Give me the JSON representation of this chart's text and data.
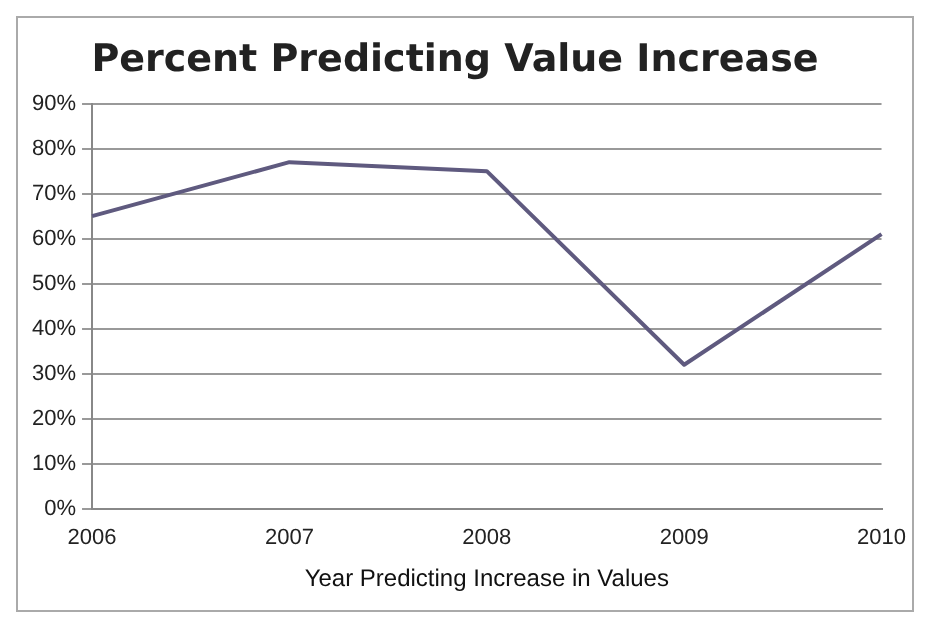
{
  "chart_data": {
    "type": "line",
    "title": "Percent Predicting Value Increase",
    "xlabel": "Year Predicting Increase in Values",
    "categories": [
      "2006",
      "2007",
      "2008",
      "2009",
      "2010"
    ],
    "series": [
      {
        "color": "#5f5a7f",
        "values": [
          65,
          77,
          75,
          32,
          61
        ]
      }
    ],
    "ylim": [
      0,
      90
    ],
    "yticks": [
      {
        "value": 0,
        "label": "0%"
      },
      {
        "value": 10,
        "label": "10%"
      },
      {
        "value": 20,
        "label": "20%"
      },
      {
        "value": 30,
        "label": "30%"
      },
      {
        "value": 40,
        "label": "40%"
      },
      {
        "value": 50,
        "label": "50%"
      },
      {
        "value": 60,
        "label": "60%"
      },
      {
        "value": 70,
        "label": "70%"
      },
      {
        "value": 80,
        "label": "80%"
      },
      {
        "value": 90,
        "label": "90%"
      }
    ],
    "grid": "y",
    "legend": false,
    "marker": "none"
  }
}
